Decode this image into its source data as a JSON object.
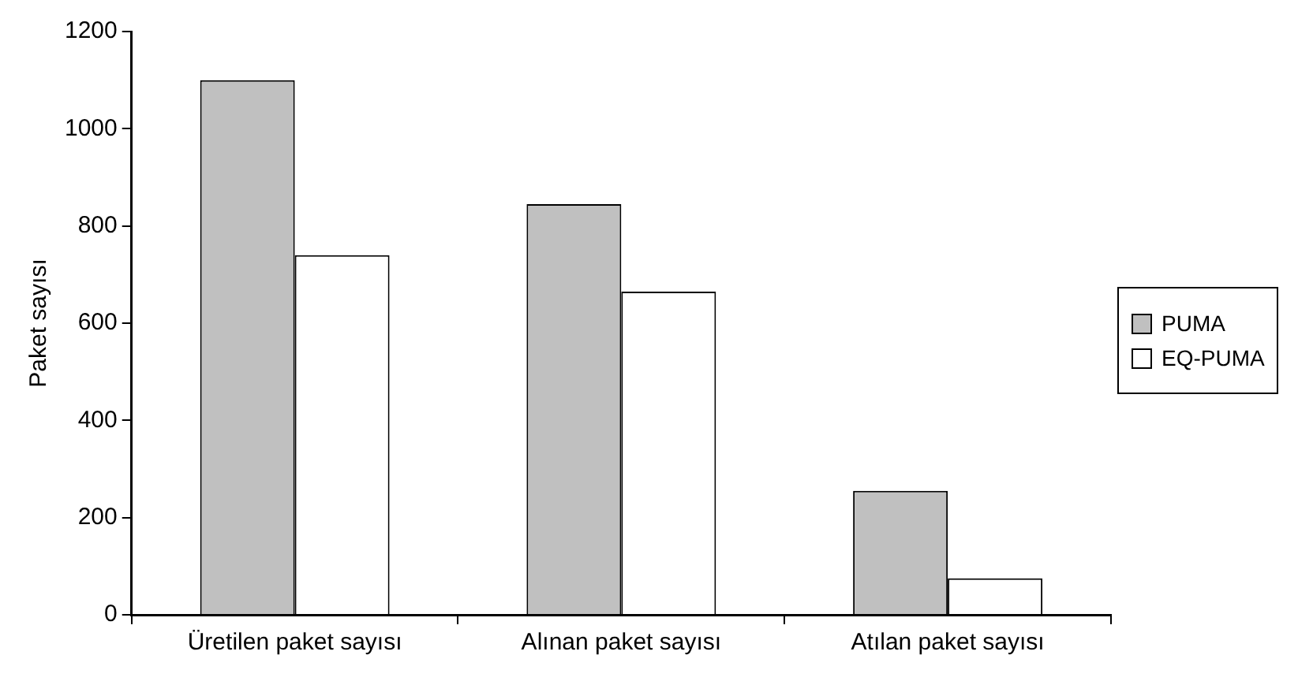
{
  "chart_data": {
    "type": "bar",
    "ylabel": "Paket sayısı",
    "categories": [
      "Üretilen paket sayısı",
      "Alınan paket sayısı",
      "Atılan paket sayısı"
    ],
    "series": [
      {
        "name": "PUMA",
        "color": "#c0c0c0",
        "values": [
          1100,
          845,
          255
        ]
      },
      {
        "name": "EQ-PUMA",
        "color": "#ffffff",
        "values": [
          740,
          665,
          75
        ]
      }
    ],
    "ylim": [
      0,
      1200
    ],
    "yticks": [
      0,
      200,
      400,
      600,
      800,
      1000,
      1200
    ],
    "grid": false,
    "legend": "right"
  }
}
